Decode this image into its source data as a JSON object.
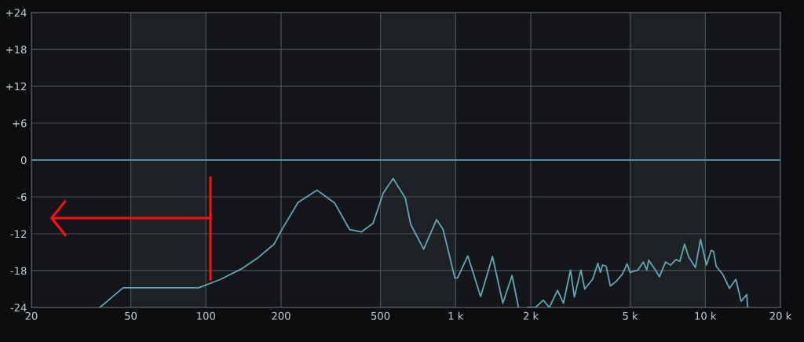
{
  "chart_data": {
    "type": "line",
    "log": "x",
    "xlim": [
      20,
      20000
    ],
    "ylim": [
      -24,
      24
    ],
    "xticks": [
      20,
      50,
      100,
      200,
      500,
      {
        "value": 1000,
        "label": "1 k"
      },
      {
        "value": 2000,
        "label": "2 k"
      },
      {
        "value": 5000,
        "label": "5 k"
      },
      {
        "value": 10000,
        "label": "10 k"
      },
      {
        "value": 20000,
        "label": "20 k"
      }
    ],
    "yticks": [
      {
        "value": 24,
        "label": "+24"
      },
      {
        "value": 18,
        "label": "+18"
      },
      {
        "value": 12,
        "label": "+12"
      },
      {
        "value": 6,
        "label": "+6"
      },
      0,
      {
        "value": -6,
        "label": "-6"
      },
      {
        "value": -12,
        "label": "-12"
      },
      {
        "value": -18,
        "label": "-18"
      },
      {
        "value": -24,
        "label": "-24"
      }
    ],
    "grid": true,
    "marker": "none",
    "line_style": "solid",
    "ref_lines": [
      {
        "axis": "y",
        "value": 0,
        "color": "#4a8ea3"
      }
    ],
    "bands": [
      {
        "axis": "x",
        "from": 50,
        "to": 100,
        "color": "#1e2124"
      },
      {
        "axis": "x",
        "from": 500,
        "to": 1000,
        "color": "#1e2124"
      },
      {
        "axis": "x",
        "from": 5000,
        "to": 10000,
        "color": "#1e2124"
      }
    ],
    "series": [
      {
        "color": "#5ea6b8",
        "x": [
          37.6,
          46.6,
          93.5,
          114.7,
          139,
          160.4,
          187.5,
          199,
          234,
          278.5,
          328,
          376,
          419,
          467,
          513,
          562,
          629,
          661,
          745,
          839,
          891,
          993,
          1018,
          1119,
          1260,
          1405,
          1546,
          1683,
          1786,
          1860,
          1943,
          2090,
          2245,
          2374,
          2559,
          2704,
          2885,
          2990,
          3175,
          3290,
          3540,
          3714,
          3800,
          3875,
          4010,
          4165,
          4385,
          4650,
          4865,
          5000,
          5370,
          5650,
          5830,
          5940,
          6310,
          6550,
          6930,
          7270,
          7630,
          7910,
          8260,
          8590,
          9130,
          9570,
          10110,
          10550,
          10800,
          11060,
          11750,
          12480,
          13260,
          13910,
          14660,
          14770
        ],
        "values": [
          -24,
          -20.8,
          -20.8,
          -19.4,
          -17.7,
          -16.0,
          -13.7,
          -11.7,
          -6.9,
          -4.9,
          -7.0,
          -11.3,
          -11.7,
          -10.3,
          -5.4,
          -3.0,
          -6.2,
          -10.5,
          -14.5,
          -9.7,
          -11.3,
          -19.2,
          -19.2,
          -15.6,
          -22.2,
          -15.7,
          -23.3,
          -18.8,
          -24,
          null,
          -24,
          -24,
          -22.8,
          -24,
          -21.2,
          -23.3,
          -17.9,
          -22.3,
          -17.9,
          -21.0,
          -19.4,
          -16.8,
          -18.3,
          -17.1,
          -17.3,
          -20.5,
          -19.8,
          -18.6,
          -16.9,
          -18.3,
          -17.9,
          -16.6,
          -17.9,
          -16.3,
          -17.9,
          -19.0,
          -16.6,
          -17.1,
          -16.2,
          -16.5,
          -13.7,
          -15.8,
          -17.5,
          -12.9,
          -17.1,
          -14.7,
          -14.9,
          -17.3,
          -18.6,
          -20.9,
          -19.4,
          -23.0,
          -21.9,
          -24
        ]
      }
    ]
  }
}
